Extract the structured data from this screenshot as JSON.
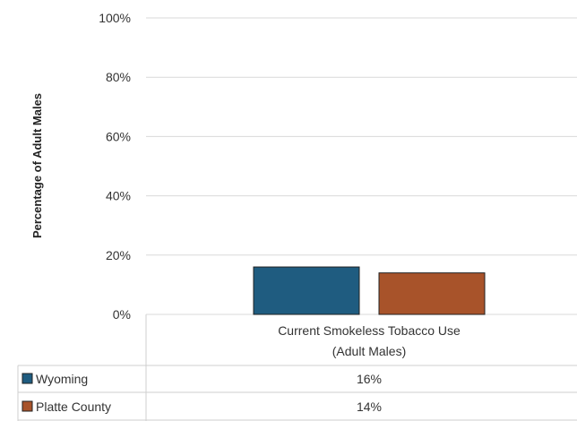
{
  "chart_data": {
    "type": "bar",
    "title": "",
    "ylabel": "Percentage of Adult Males",
    "xlabel": "",
    "ylim": [
      0,
      100
    ],
    "yticks": [
      "0%",
      "20%",
      "40%",
      "60%",
      "80%",
      "100%"
    ],
    "categories": [
      {
        "line1": "Current Smokeless Tobacco Use",
        "line2": "(Adult Males)"
      }
    ],
    "series": [
      {
        "name": "Wyoming",
        "values": [
          16
        ],
        "value_labels": [
          "16%"
        ],
        "color": "#1f5c80"
      },
      {
        "name": "Platte County",
        "values": [
          14
        ],
        "value_labels": [
          "14%"
        ],
        "color": "#a8532a"
      }
    ],
    "grid": true,
    "legend_placement": "data-table-below"
  }
}
